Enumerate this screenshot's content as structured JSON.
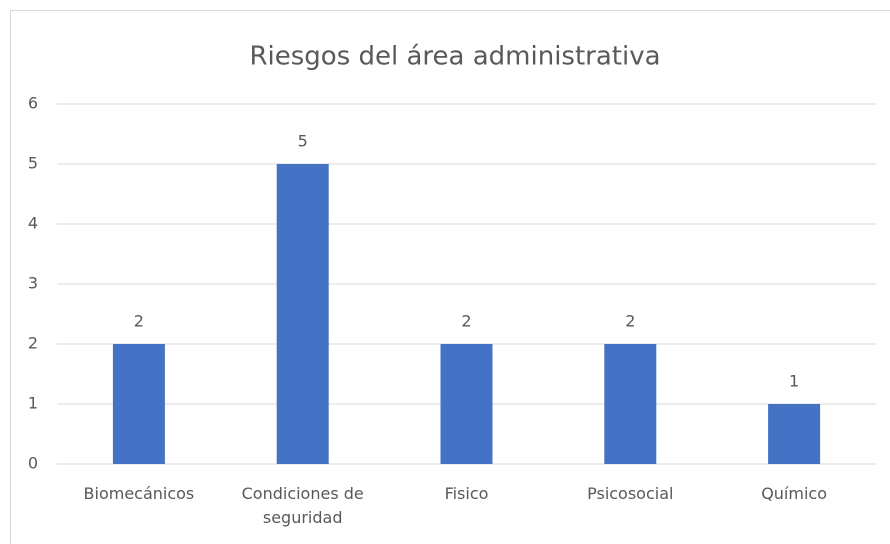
{
  "chart_data": {
    "type": "bar",
    "title": "Riesgos del área administrativa",
    "categories": [
      "Biomecánicos",
      "Condiciones de seguridad",
      "Fisico",
      "Psicosocial",
      "Químico"
    ],
    "values": [
      2,
      5,
      2,
      2,
      1
    ],
    "color": "#4472c4",
    "ylim": [
      0,
      6
    ],
    "yticks": [
      0,
      1,
      2,
      3,
      4,
      5,
      6
    ],
    "grid": true,
    "data_labels": true
  }
}
